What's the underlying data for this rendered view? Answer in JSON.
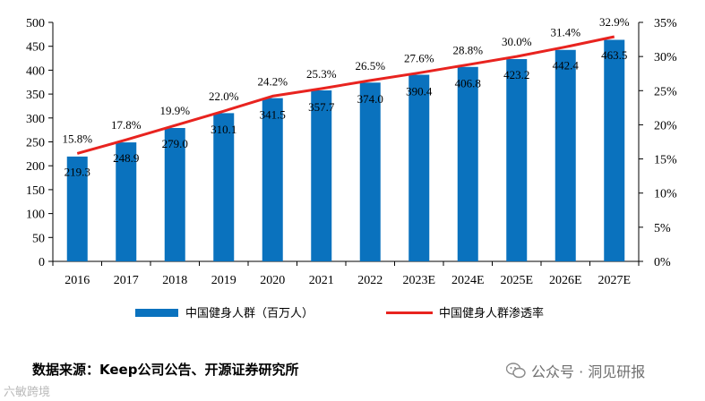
{
  "chart_data": {
    "type": "bar",
    "categories": [
      "2016",
      "2017",
      "2018",
      "2019",
      "2020",
      "2021",
      "2022",
      "2023E",
      "2024E",
      "2025E",
      "2026E",
      "2027E"
    ],
    "series": [
      {
        "name": "中国健身人群（百万人）",
        "kind": "bar",
        "axis": "left",
        "color": "#0a72be",
        "values": [
          219.3,
          248.9,
          279.0,
          310.1,
          341.5,
          357.7,
          374.0,
          390.4,
          406.8,
          423.2,
          442.4,
          463.5
        ],
        "labels": [
          "219.3",
          "248.9",
          "279.0",
          "310.1",
          "341.5",
          "357.7",
          "374.0",
          "390.4",
          "406.8",
          "423.2",
          "442.4",
          "463.5"
        ]
      },
      {
        "name": "中国健身人群渗透率",
        "kind": "line",
        "axis": "right",
        "color": "#e8231f",
        "values": [
          15.8,
          17.8,
          19.9,
          22.0,
          24.2,
          25.3,
          26.5,
          27.6,
          28.8,
          30.0,
          31.4,
          32.9
        ],
        "labels": [
          "15.8%",
          "17.8%",
          "19.9%",
          "22.0%",
          "24.2%",
          "25.3%",
          "26.5%",
          "27.6%",
          "28.8%",
          "30.0%",
          "31.4%",
          "32.9%"
        ]
      }
    ],
    "y_left": {
      "min": 0,
      "max": 500,
      "ticks": [
        "0",
        "50",
        "100",
        "150",
        "200",
        "250",
        "300",
        "350",
        "400",
        "450",
        "500"
      ]
    },
    "y_right": {
      "min": 0,
      "max": 35,
      "ticks": [
        "0%",
        "5%",
        "10%",
        "15%",
        "20%",
        "25%",
        "30%",
        "35%"
      ]
    },
    "grid": false,
    "legend": "bottom"
  },
  "footer": {
    "source": "数据来源：Keep公司公告、开源证券研究所",
    "watermark": "公众号 · 洞见研报",
    "corner_mark": "六敏跨境"
  }
}
